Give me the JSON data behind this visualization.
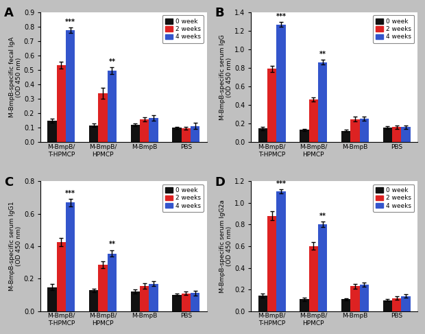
{
  "panels": [
    {
      "label": "A",
      "ylabel": "M-BmpB-specific fecal IgA\n(OD 450 nm)",
      "ylim": [
        0,
        0.9
      ],
      "yticks": [
        0.0,
        0.1,
        0.2,
        0.3,
        0.4,
        0.5,
        0.6,
        0.7,
        0.8,
        0.9
      ],
      "groups": [
        "M-BmpB/\nT-HPMCP",
        "M-BmpB/\nHPMCP",
        "M-BmpB",
        "PBS"
      ],
      "values": {
        "0week": [
          0.148,
          0.118,
          0.122,
          0.1
        ],
        "2weeks": [
          0.535,
          0.338,
          0.158,
          0.098
        ],
        "4weeks": [
          0.775,
          0.495,
          0.168,
          0.112
        ]
      },
      "errors": {
        "0week": [
          0.015,
          0.01,
          0.01,
          0.008
        ],
        "2weeks": [
          0.025,
          0.038,
          0.015,
          0.01
        ],
        "4weeks": [
          0.02,
          0.025,
          0.018,
          0.022
        ]
      },
      "sig0": "***",
      "sig1": "**"
    },
    {
      "label": "B",
      "ylabel": "M-BmpB-specific serum IgG\n(OD 450 nm)",
      "ylim": [
        0,
        1.4
      ],
      "yticks": [
        0.0,
        0.2,
        0.4,
        0.6,
        0.8,
        1.0,
        1.2,
        1.4
      ],
      "groups": [
        "M-BmpB/\nT-HPMCP",
        "M-BmpB/\nHPMCP",
        "M-BmpB",
        "PBS"
      ],
      "values": {
        "0week": [
          0.148,
          0.135,
          0.125,
          0.158
        ],
        "2weeks": [
          0.79,
          0.462,
          0.25,
          0.163
        ],
        "4weeks": [
          1.27,
          0.863,
          0.255,
          0.163
        ]
      },
      "errors": {
        "0week": [
          0.018,
          0.012,
          0.012,
          0.015
        ],
        "2weeks": [
          0.03,
          0.025,
          0.025,
          0.018
        ],
        "4weeks": [
          0.025,
          0.025,
          0.02,
          0.02
        ]
      },
      "sig0": "***",
      "sig1": "**"
    },
    {
      "label": "C",
      "ylabel": "M-BmpB-specific serum IgG1\n(OD 450 nm)",
      "ylim": [
        0,
        0.8
      ],
      "yticks": [
        0.0,
        0.2,
        0.4,
        0.6,
        0.8
      ],
      "groups": [
        "M-BmpB/\nT-HPMCP",
        "M-BmpB/\nHPMCP",
        "M-BmpB",
        "PBS"
      ],
      "values": {
        "0week": [
          0.148,
          0.128,
          0.122,
          0.102
        ],
        "2weeks": [
          0.425,
          0.285,
          0.155,
          0.11
        ],
        "4weeks": [
          0.668,
          0.355,
          0.168,
          0.112
        ]
      },
      "errors": {
        "0week": [
          0.018,
          0.012,
          0.012,
          0.008
        ],
        "2weeks": [
          0.025,
          0.022,
          0.015,
          0.01
        ],
        "4weeks": [
          0.022,
          0.02,
          0.015,
          0.015
        ]
      },
      "sig0": "***",
      "sig1": "**"
    },
    {
      "label": "D",
      "ylabel": "M-BmpB-specific serum IgG2a\n(OD 450 nm)",
      "ylim": [
        0,
        1.2
      ],
      "yticks": [
        0.0,
        0.2,
        0.4,
        0.6,
        0.8,
        1.0,
        1.2
      ],
      "groups": [
        "M-BmpB/\nT-HPMCP",
        "M-BmpB/\nHPMCP",
        "M-BmpB",
        "PBS"
      ],
      "values": {
        "0week": [
          0.145,
          0.11,
          0.11,
          0.1
        ],
        "2weeks": [
          0.88,
          0.6,
          0.23,
          0.12
        ],
        "4weeks": [
          1.105,
          0.8,
          0.245,
          0.14
        ]
      },
      "errors": {
        "0week": [
          0.02,
          0.015,
          0.01,
          0.01
        ],
        "2weeks": [
          0.04,
          0.035,
          0.02,
          0.015
        ],
        "4weeks": [
          0.02,
          0.025,
          0.018,
          0.018
        ]
      },
      "sig0": "***",
      "sig1": "**"
    }
  ],
  "colors": {
    "0week": "#111111",
    "2weeks": "#dd2222",
    "4weeks": "#3355cc"
  },
  "legend_labels": [
    "0 week",
    "2 weeks",
    "4 weeks"
  ],
  "bar_width": 0.22,
  "background_color": "#c8c8c8",
  "panel_bg": "#ffffff",
  "figure_bg": "#c0c0c0"
}
